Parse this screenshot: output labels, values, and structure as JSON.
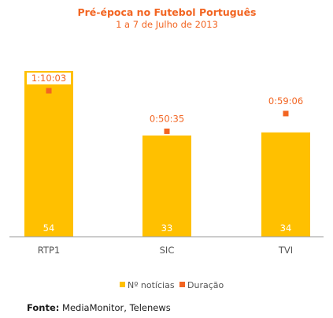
{
  "chart_data": {
    "type": "bar",
    "title": "Pré-época no Futebol Português",
    "subtitle": "1 a 7 de Julho de 2013",
    "categories": [
      "RTP1",
      "SIC",
      "TVI"
    ],
    "series": [
      {
        "name": "Nº notícias",
        "type": "bar",
        "values": [
          54,
          33,
          34
        ],
        "data_labels": [
          "54",
          "33",
          "34"
        ]
      },
      {
        "name": "Duração",
        "type": "scatter",
        "values": [
          "1:10:03",
          "0:50:35",
          "0:59:06"
        ],
        "data_labels": [
          "1:10:03",
          "0:50:35",
          "0:59:06"
        ]
      }
    ],
    "legend_position": "bottom",
    "grid": false,
    "colors": {
      "bar": "#FFC000",
      "marker": "#F26522",
      "title": "#F26522",
      "label": "#F26522",
      "bar_label": "#FFFFFF",
      "axis": "#999999",
      "tick": "#555555"
    }
  },
  "source": {
    "label": "Fonte:",
    "text": "MediaMonitor, Telenews"
  }
}
